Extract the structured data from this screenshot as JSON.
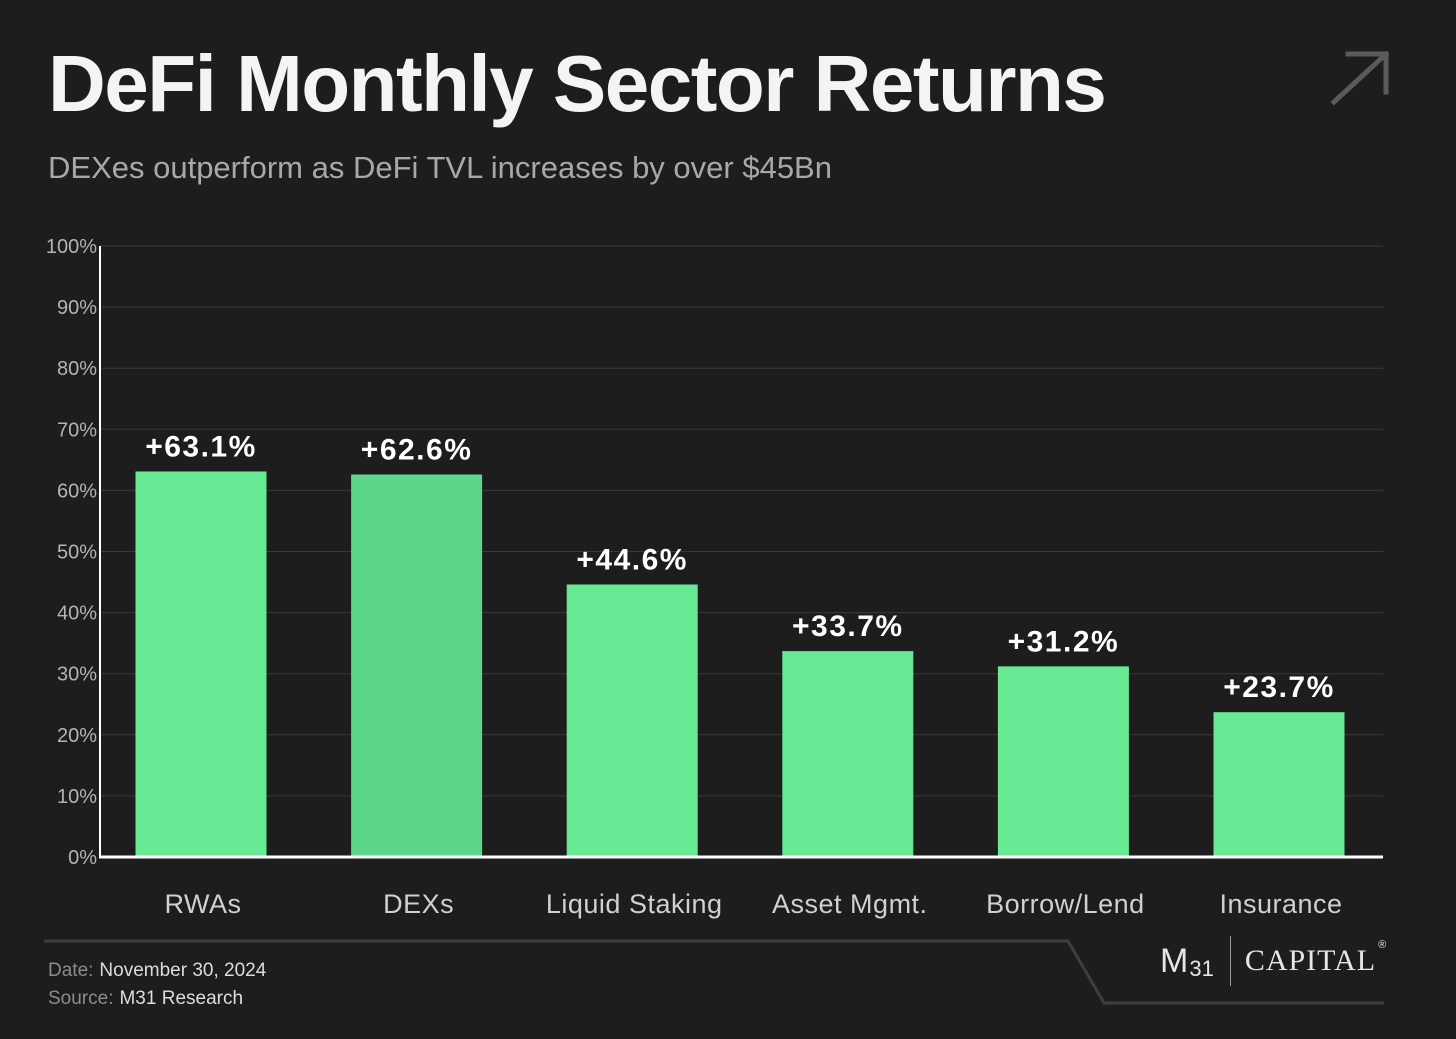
{
  "header": {
    "title": "DeFi Monthly Sector Returns",
    "subtitle": "DEXes outperform as DeFi TVL increases by over $45Bn",
    "corner_icon": "arrow-up-right-icon"
  },
  "chart_data": {
    "type": "bar",
    "title": "DeFi Monthly Sector Returns",
    "subtitle": "DEXes outperform as DeFi TVL increases by over $45Bn",
    "categories": [
      "RWAs",
      "DEXs",
      "Liquid Staking",
      "Asset Mgmt.",
      "Borrow/Lend",
      "Insurance"
    ],
    "values": [
      63.1,
      62.6,
      44.6,
      33.7,
      31.2,
      23.7
    ],
    "data_labels": [
      "+63.1%",
      "+62.6%",
      "+44.6%",
      "+33.7%",
      "+31.2%",
      "+23.7%"
    ],
    "yticks": [
      "0%",
      "10%",
      "20%",
      "30%",
      "40%",
      "50%",
      "60%",
      "70%",
      "80%",
      "90%",
      "100%"
    ],
    "ylim": [
      0,
      100
    ],
    "grid": true,
    "legend": false,
    "bar_color": "#68e994",
    "highlight_bar_color": "#5cd688",
    "highlight_index": 1
  },
  "footer": {
    "date_label": "Date:",
    "date_value": "November 30, 2024",
    "source_label": "Source:",
    "source_value": "M31 Research"
  },
  "logo": {
    "mark": "M",
    "mark_sub": "31",
    "wordmark": "CAPITAL",
    "registered": "®"
  }
}
